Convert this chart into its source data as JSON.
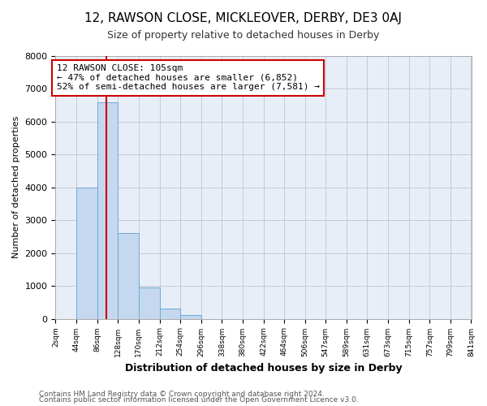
{
  "title": "12, RAWSON CLOSE, MICKLEOVER, DERBY, DE3 0AJ",
  "subtitle": "Size of property relative to detached houses in Derby",
  "xlabel": "Distribution of detached houses by size in Derby",
  "ylabel": "Number of detached properties",
  "bin_edges": [
    2,
    44,
    86,
    128,
    170,
    212,
    254,
    296,
    338,
    380,
    422,
    464,
    506,
    547,
    589,
    631,
    673,
    715,
    757,
    799,
    841
  ],
  "bar_heights": [
    0,
    4000,
    6600,
    2600,
    950,
    320,
    120,
    0,
    0,
    0,
    0,
    0,
    0,
    0,
    0,
    0,
    0,
    0,
    0,
    0
  ],
  "bar_color": "#c5d8f0",
  "bar_edgecolor": "#6aaad4",
  "property_line_x": 105,
  "property_line_color": "#cc0000",
  "annotation_text": "12 RAWSON CLOSE: 105sqm\n← 47% of detached houses are smaller (6,852)\n52% of semi-detached houses are larger (7,581) →",
  "annotation_box_edgecolor": "#cc0000",
  "annotation_box_facecolor": "#ffffff",
  "ylim": [
    0,
    8000
  ],
  "tick_labels": [
    "2sqm",
    "44sqm",
    "86sqm",
    "128sqm",
    "170sqm",
    "212sqm",
    "254sqm",
    "296sqm",
    "338sqm",
    "380sqm",
    "422sqm",
    "464sqm",
    "506sqm",
    "547sqm",
    "589sqm",
    "631sqm",
    "673sqm",
    "715sqm",
    "757sqm",
    "799sqm",
    "841sqm"
  ],
  "footer1": "Contains HM Land Registry data © Crown copyright and database right 2024.",
  "footer2": "Contains public sector information licensed under the Open Government Licence v3.0.",
  "fig_background": "#ffffff",
  "plot_background": "#e8eef8",
  "grid_color": "#c8c8d8",
  "title_fontsize": 11,
  "subtitle_fontsize": 9,
  "xlabel_fontsize": 9,
  "ylabel_fontsize": 8,
  "tick_fontsize": 6.5,
  "footer_fontsize": 6.5,
  "annotation_fontsize": 8
}
